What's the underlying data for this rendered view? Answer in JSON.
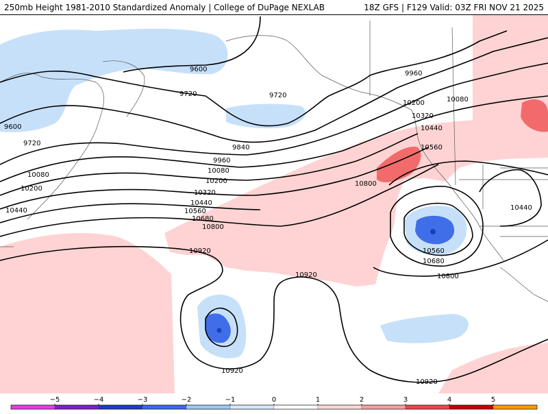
{
  "header": {
    "left_title": "250mb Height 1981-2010 Standardized Anomaly | College of DuPage NEXLAB",
    "right_title": "18Z GFS | F129 Valid: 03Z FRI NOV 21 2025"
  },
  "contour_labels": [
    {
      "id": "c1",
      "text": "9600"
    },
    {
      "id": "c2",
      "text": "9600"
    },
    {
      "id": "c3",
      "text": "9720"
    },
    {
      "id": "c4",
      "text": "9720"
    },
    {
      "id": "c5",
      "text": "9720"
    },
    {
      "id": "c6",
      "text": "9840"
    },
    {
      "id": "c7",
      "text": "9960"
    },
    {
      "id": "c8",
      "text": "9960"
    },
    {
      "id": "c9",
      "text": "10080"
    },
    {
      "id": "c10",
      "text": "10080"
    },
    {
      "id": "c11",
      "text": "10080"
    },
    {
      "id": "c12",
      "text": "10200"
    },
    {
      "id": "c13",
      "text": "10200"
    },
    {
      "id": "c14",
      "text": "10200"
    },
    {
      "id": "c15",
      "text": "10320"
    },
    {
      "id": "c16",
      "text": "10320"
    },
    {
      "id": "c17",
      "text": "10440"
    },
    {
      "id": "c18",
      "text": "10440"
    },
    {
      "id": "c19",
      "text": "10440"
    },
    {
      "id": "c20",
      "text": "10440"
    },
    {
      "id": "c21",
      "text": "10560"
    },
    {
      "id": "c22",
      "text": "10560"
    },
    {
      "id": "c23",
      "text": "10560"
    },
    {
      "id": "c24",
      "text": "10680"
    },
    {
      "id": "c25",
      "text": "10680"
    },
    {
      "id": "c26",
      "text": "10800"
    },
    {
      "id": "c27",
      "text": "10800"
    },
    {
      "id": "c28",
      "text": "10800"
    },
    {
      "id": "c29",
      "text": "10920"
    },
    {
      "id": "c30",
      "text": "10920"
    },
    {
      "id": "c31",
      "text": "10920"
    },
    {
      "id": "c32",
      "text": "10920"
    }
  ],
  "legend": {
    "ticks": [
      "−5",
      "−4",
      "−3",
      "−2",
      "−1",
      "0",
      "1",
      "2",
      "3",
      "4",
      "5"
    ],
    "colors": [
      "#e040e0",
      "#8020c0",
      "#1a3fbf",
      "#3a6ae8",
      "#9ec8f5",
      "#d6e8fb",
      "#ffffff",
      "#ffd6d6",
      "#f4a0a0",
      "#e84848",
      "#c00000",
      "#ff9900"
    ]
  }
}
